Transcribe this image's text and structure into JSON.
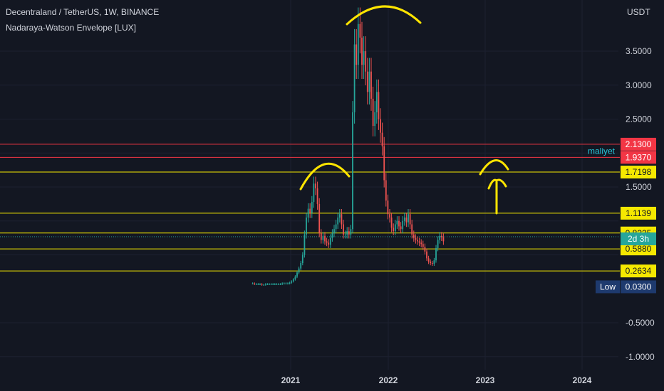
{
  "header": {
    "title": "Decentraland / TetherUS, 1W, BINANCE",
    "indicator": "Nadaraya-Watson Envelope [LUX]"
  },
  "colors": {
    "background": "#131722",
    "up": "#26a69a",
    "down": "#ef5350",
    "yellow_line": "#f5e800",
    "red_line": "#f23645",
    "annotation": "#ffe500"
  },
  "chart_data": {
    "type": "candlestick",
    "currency_label": "USDT",
    "y_ticks": [
      "3.5000",
      "3.0000",
      "2.5000",
      "1.5000",
      "-0.5000",
      "-1.0000"
    ],
    "y_tick_values": [
      3.5,
      3.0,
      2.5,
      1.5,
      -0.5,
      -1.0
    ],
    "x_ticks": [
      "2021",
      "2022",
      "2023",
      "2024"
    ],
    "levels": [
      {
        "label": "2.1300",
        "value": 2.13,
        "color": "#f23645",
        "text_color": "#ffffff"
      },
      {
        "label": "1.9370",
        "value": 1.937,
        "color": "#f23645",
        "text_color": "#ffffff"
      },
      {
        "label": "1.7198",
        "value": 1.7198,
        "color": "#f5e800",
        "text_color": "#131722"
      },
      {
        "label": "1.1139",
        "value": 1.1139,
        "color": "#f5e800",
        "text_color": "#131722"
      },
      {
        "label": "0.8225",
        "value": 0.8225,
        "color": "#f5e800",
        "text_color": "#131722"
      },
      {
        "label": "0.5880",
        "value": 0.588,
        "color": "#f5e800",
        "text_color": "#131722"
      },
      {
        "label": "0.2634",
        "value": 0.2634,
        "color": "#f5e800",
        "text_color": "#131722"
      }
    ],
    "current_tag": "2d 3h",
    "low_label": "Low",
    "low_value": "0.0300",
    "maliyet_label": "maliyet",
    "prices": [
      0.08,
      0.08,
      0.07,
      0.07,
      0.07,
      0.07,
      0.06,
      0.06,
      0.07,
      0.07,
      0.07,
      0.07,
      0.07,
      0.07,
      0.07,
      0.07,
      0.07,
      0.08,
      0.08,
      0.08,
      0.08,
      0.09,
      0.11,
      0.14,
      0.18,
      0.24,
      0.3,
      0.38,
      0.5,
      0.8,
      1.05,
      1.18,
      1.12,
      1.28,
      1.55,
      1.48,
      1.25,
      0.82,
      0.72,
      0.78,
      0.7,
      0.68,
      0.65,
      0.75,
      0.82,
      0.88,
      0.95,
      1.05,
      1.1,
      0.95,
      0.8,
      0.8,
      0.85,
      0.8,
      0.88,
      2.6,
      3.6,
      3.3,
      3.9,
      3.7,
      3.3,
      3.5,
      3.2,
      2.9,
      3.2,
      2.8,
      2.4,
      2.6,
      2.9,
      2.5,
      2.3,
      2.1,
      1.6,
      1.3,
      1.1,
      1.05,
      0.9,
      0.85,
      0.95,
      1.0,
      0.92,
      0.88,
      1.0,
      1.05,
      0.98,
      1.1,
      0.95,
      0.8,
      0.75,
      0.72,
      0.7,
      0.68,
      0.66,
      0.62,
      0.55,
      0.45,
      0.4,
      0.38,
      0.37,
      0.42,
      0.6,
      0.72,
      0.78,
      0.76,
      0.7
    ]
  }
}
